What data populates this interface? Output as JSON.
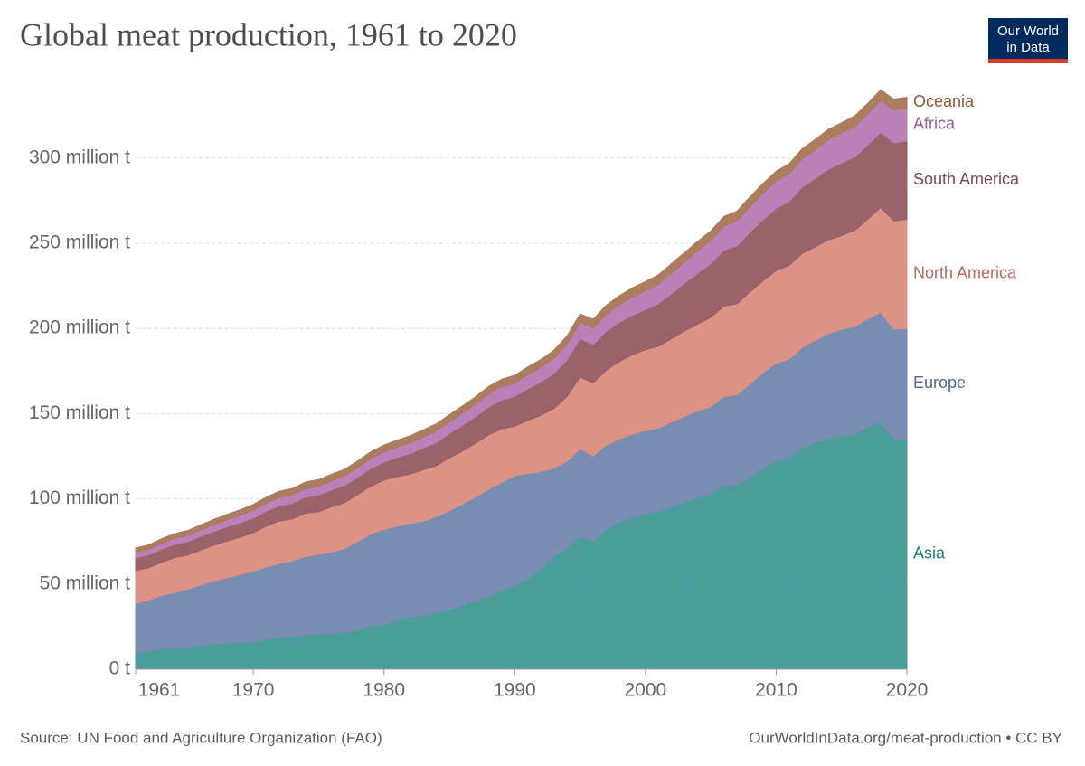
{
  "chart_data": {
    "type": "stacked-area",
    "title": "Global meat production, 1961 to 2020",
    "source": "Source: UN Food and Agriculture Organization (FAO)",
    "credit": "OurWorldInData.org/meat-production • CC BY",
    "logo": [
      "Our World",
      "in Data"
    ],
    "x": [
      1961,
      1962,
      1963,
      1964,
      1965,
      1966,
      1967,
      1968,
      1969,
      1970,
      1971,
      1972,
      1973,
      1974,
      1975,
      1976,
      1977,
      1978,
      1979,
      1980,
      1981,
      1982,
      1983,
      1984,
      1985,
      1986,
      1987,
      1988,
      1989,
      1990,
      1991,
      1992,
      1993,
      1994,
      1995,
      1996,
      1997,
      1998,
      1999,
      2000,
      2001,
      2002,
      2003,
      2004,
      2005,
      2006,
      2007,
      2008,
      2009,
      2010,
      2011,
      2012,
      2013,
      2014,
      2015,
      2016,
      2017,
      2018,
      2019,
      2020
    ],
    "xlim": [
      1961,
      2020
    ],
    "xticks": [
      1961,
      1970,
      1980,
      1990,
      2000,
      2010,
      2020
    ],
    "ylim": [
      0,
      345
    ],
    "yticks": [
      {
        "value": 0,
        "label": "0 t"
      },
      {
        "value": 50,
        "label": "50 million t"
      },
      {
        "value": 100,
        "label": "100 million t"
      },
      {
        "value": 150,
        "label": "150 million t"
      },
      {
        "value": 200,
        "label": "200 million t"
      },
      {
        "value": 250,
        "label": "250 million t"
      },
      {
        "value": 300,
        "label": "300 million t"
      }
    ],
    "grid": true,
    "series": [
      {
        "name": "Asia",
        "color": "#4ea8a5",
        "values": [
          9.5,
          10.5,
          11.8,
          12.5,
          13,
          14,
          14.8,
          15.2,
          15.5,
          16,
          17.5,
          18.5,
          19.2,
          20,
          20.5,
          20.8,
          21.3,
          23,
          25.5,
          26,
          28.5,
          30.5,
          31.5,
          33,
          35,
          37.5,
          40,
          43,
          46,
          49,
          53,
          59,
          66,
          71,
          78,
          75,
          82,
          86,
          89,
          91,
          92.5,
          95,
          98,
          100.5,
          103,
          108,
          108,
          113,
          118,
          122,
          124,
          130,
          133,
          135.5,
          137,
          138,
          142,
          145,
          135,
          135
        ]
      },
      {
        "name": "Europe",
        "color": "#8197c0",
        "values": [
          29,
          30,
          31.5,
          32.5,
          34,
          35.5,
          37,
          38.5,
          40,
          41.5,
          42.5,
          43.5,
          44.5,
          46,
          47,
          48,
          49.5,
          52,
          54,
          56,
          55.5,
          55,
          55.5,
          56.5,
          58,
          59.5,
          61,
          62.5,
          63.5,
          64.5,
          62,
          57,
          52,
          51,
          51.5,
          50,
          49.5,
          49,
          49,
          49,
          49,
          50,
          50.5,
          51,
          51,
          52,
          53,
          54.5,
          56,
          57.5,
          58,
          59,
          60,
          61.5,
          62.5,
          63,
          63.5,
          64.5,
          64.5,
          65
        ]
      },
      {
        "name": "North America",
        "color": "#ef9d8f",
        "values": [
          19.5,
          19,
          19.5,
          20.5,
          20,
          20.5,
          21,
          21.5,
          22,
          22.5,
          24,
          25,
          24.5,
          25.5,
          25,
          26.5,
          27,
          27.5,
          28,
          29,
          29,
          29,
          30,
          30,
          31,
          31,
          31.5,
          32,
          31.5,
          29,
          31,
          33,
          35,
          38,
          42,
          43,
          44,
          45.5,
          46.5,
          47.5,
          48,
          49,
          50,
          51,
          52.5,
          53,
          53.5,
          54,
          54,
          54.5,
          55,
          55,
          55,
          55,
          55,
          56.5,
          58.5,
          61.5,
          63.5,
          64
        ]
      },
      {
        "name": "South America",
        "color": "#a5686f",
        "values": [
          7.5,
          7.6,
          7.7,
          7.8,
          7.9,
          8,
          8.2,
          8.4,
          8.5,
          8.7,
          8.8,
          9,
          9.2,
          9.5,
          9.7,
          9.9,
          10.1,
          10.2,
          10.4,
          10.5,
          11.2,
          12,
          12.8,
          13.5,
          14.2,
          15,
          15.7,
          16.4,
          17,
          17.5,
          18.5,
          19.5,
          20.5,
          21.5,
          22.5,
          22.5,
          22.8,
          23,
          23.2,
          23.5,
          25,
          26.5,
          28,
          30,
          31.5,
          33,
          34,
          35,
          35.8,
          36.5,
          37.5,
          39,
          40,
          41.5,
          42.5,
          43,
          43.5,
          44,
          46,
          46
        ]
      },
      {
        "name": "Africa",
        "color": "#c88ac7",
        "values": [
          3.2,
          3.3,
          3.4,
          3.5,
          3.6,
          3.8,
          3.9,
          4.1,
          4.3,
          4.5,
          4.6,
          4.8,
          4.9,
          5,
          5.2,
          5.3,
          5.5,
          5.6,
          5.8,
          6,
          6.2,
          6.4,
          6.6,
          6.8,
          7,
          7.2,
          7.4,
          7.6,
          7.8,
          8,
          8.3,
          8.6,
          8.9,
          9.2,
          9.5,
          9.8,
          10.1,
          10.4,
          10.7,
          11,
          11.5,
          12,
          12.5,
          13,
          13.5,
          14,
          14.5,
          15,
          15.5,
          16,
          16.3,
          16.6,
          17,
          17.3,
          17.6,
          18,
          18.4,
          18.8,
          19.2,
          19.5
        ]
      },
      {
        "name": "Oceania",
        "color": "#b98463",
        "values": [
          2.5,
          2.6,
          2.7,
          2.8,
          2.9,
          3,
          3.1,
          3.2,
          3.3,
          3.5,
          3.6,
          3.7,
          3.8,
          3.9,
          3.9,
          4,
          4,
          4,
          4,
          4,
          4,
          4.1,
          4.1,
          4.2,
          4.2,
          4.3,
          4.3,
          4.4,
          4.4,
          4.5,
          4.6,
          4.7,
          4.8,
          4.9,
          5,
          5.1,
          5.2,
          5.3,
          5.4,
          5.5,
          5.5,
          5.6,
          5.6,
          5.7,
          5.7,
          5.7,
          5.8,
          5.8,
          5.8,
          5.8,
          5.9,
          6,
          6,
          6.1,
          6.1,
          6.2,
          6.2,
          6.3,
          6.3,
          6.3
        ]
      }
    ]
  }
}
